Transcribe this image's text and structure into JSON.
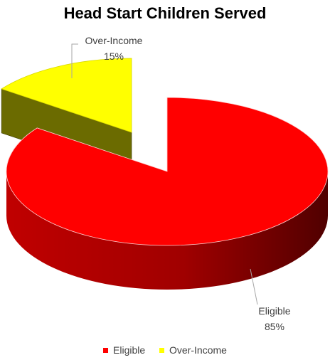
{
  "chart_data": {
    "type": "pie",
    "title": "Head Start Children Served",
    "style": "3d-exploded",
    "categories": [
      "Eligible",
      "Over-Income"
    ],
    "values": [
      85,
      15
    ],
    "value_labels": [
      "85%",
      "15%"
    ],
    "colors": [
      "#ff0000",
      "#ffff00"
    ],
    "legend": {
      "position": "bottom",
      "entries": [
        "Eligible",
        "Over-Income"
      ]
    }
  }
}
